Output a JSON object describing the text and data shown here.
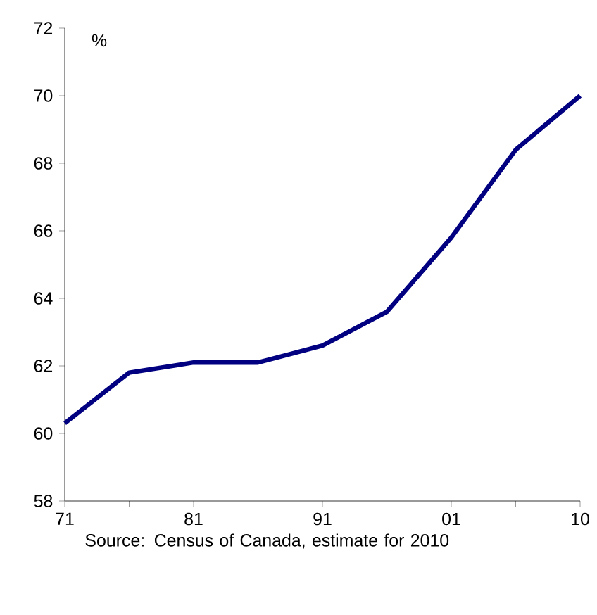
{
  "chart_data": {
    "type": "line",
    "ylabel": "%",
    "categories": [
      "71",
      null,
      "81",
      null,
      "91",
      null,
      "01",
      null,
      "10"
    ],
    "values": [
      60.3,
      61.8,
      62.1,
      62.1,
      62.6,
      63.6,
      65.8,
      68.4,
      70.0
    ],
    "color": "#000080",
    "ylim": [
      58,
      72
    ],
    "yticks": [
      58,
      60,
      62,
      64,
      66,
      68,
      70,
      72
    ],
    "annotations": [
      "Source: Census of Canada, estimate for 2010"
    ]
  }
}
